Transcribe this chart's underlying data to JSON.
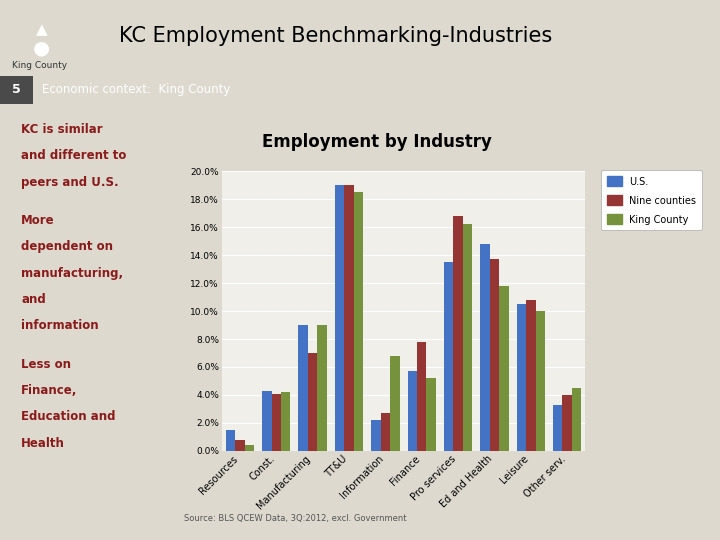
{
  "chart_title": "Employment by Industry",
  "page_title": "KC Employment Benchmarking-Industries",
  "slide_number": "5",
  "green_bar_label": "Economic context:  King County",
  "categories": [
    "Resources",
    "Const.",
    "Manufacturing",
    "TT&U",
    "Information",
    "Finance",
    "Pro services",
    "Ed and Health",
    "Leisure",
    "Other serv."
  ],
  "series": {
    "U.S.": [
      1.5,
      4.3,
      9.0,
      19.0,
      2.2,
      5.7,
      13.5,
      14.8,
      10.5,
      3.3
    ],
    "Nine counties": [
      0.8,
      4.1,
      7.0,
      19.0,
      2.7,
      7.8,
      16.8,
      13.7,
      10.8,
      4.0
    ],
    "King County": [
      0.4,
      4.2,
      9.0,
      18.5,
      6.8,
      5.2,
      16.2,
      11.8,
      10.0,
      4.5
    ]
  },
  "colors": {
    "U.S.": "#4472C4",
    "Nine counties": "#963634",
    "King County": "#76923C"
  },
  "ylim_max": 20.0,
  "ytick_values": [
    0,
    2,
    4,
    6,
    8,
    10,
    12,
    14,
    16,
    18,
    20
  ],
  "source_text": "Source: BLS QCEW Data, 3Q:2012, excl. Government",
  "bg_slide": "#DDD9CE",
  "bg_chart_panel": "#F0EFEA",
  "bg_left_panel": "#C4B49A",
  "left_text_lines": [
    [
      "KC is similar",
      false
    ],
    [
      "and different to",
      false
    ],
    [
      "peers and U.S.",
      false
    ],
    [
      "",
      false
    ],
    [
      "More",
      false
    ],
    [
      "dependent on",
      false
    ],
    [
      "manufacturing,",
      false
    ],
    [
      "and",
      false
    ],
    [
      "information",
      false
    ],
    [
      "",
      false
    ],
    [
      "Less on",
      false
    ],
    [
      "Finance,",
      false
    ],
    [
      "Education and",
      false
    ],
    [
      "Health",
      false
    ]
  ],
  "left_text_color": "#8B1A1A",
  "green_header_color": "#4E7A28",
  "slide_num_bg": "#4A4A4A",
  "header_bg": "#DDD9CE",
  "logo_bg": "#1a1a1a"
}
